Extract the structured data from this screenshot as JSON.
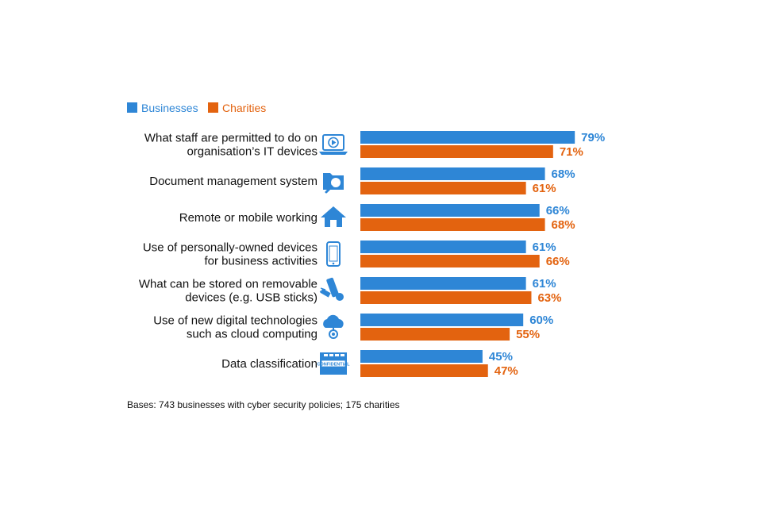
{
  "colors": {
    "businesses": "#2E86D6",
    "charities": "#E3630F",
    "icon": "#2E86D6"
  },
  "legend": [
    {
      "name": "Businesses",
      "color": "#2E86D6"
    },
    {
      "name": "Charities",
      "color": "#E3630F"
    }
  ],
  "chart_data": {
    "type": "bar",
    "orientation": "horizontal",
    "xlim": [
      0,
      100
    ],
    "value_suffix": "%",
    "grid": false,
    "legend_position": "top-left",
    "categories": [
      {
        "lines": [
          "What staff are permitted to do on",
          "organisation’s IT devices"
        ],
        "icon": "laptop-video-icon"
      },
      {
        "lines": [
          "Document management system"
        ],
        "icon": "folder-search-icon"
      },
      {
        "lines": [
          "Remote or mobile working"
        ],
        "icon": "home-icon"
      },
      {
        "lines": [
          "Use of personally-owned devices",
          "for business activities"
        ],
        "icon": "smartphone-icon"
      },
      {
        "lines": [
          "What can be stored on removable",
          "devices (e.g. USB sticks)"
        ],
        "icon": "usb-stick-icon"
      },
      {
        "lines": [
          "Use of new digital technologies",
          "such as cloud computing"
        ],
        "icon": "cloud-computing-icon"
      },
      {
        "lines": [
          "Data classification"
        ],
        "icon": "confidential-folder-icon"
      }
    ],
    "series": [
      {
        "name": "Businesses",
        "values": [
          79,
          68,
          66,
          61,
          61,
          60,
          45
        ]
      },
      {
        "name": "Charities",
        "values": [
          71,
          61,
          68,
          66,
          63,
          55,
          47
        ]
      }
    ],
    "icon_texts": {
      "confidential_stamp": "CONFIDENTIAL"
    }
  },
  "footnote": "Bases: 743 businesses with cyber security policies; 175 charities"
}
